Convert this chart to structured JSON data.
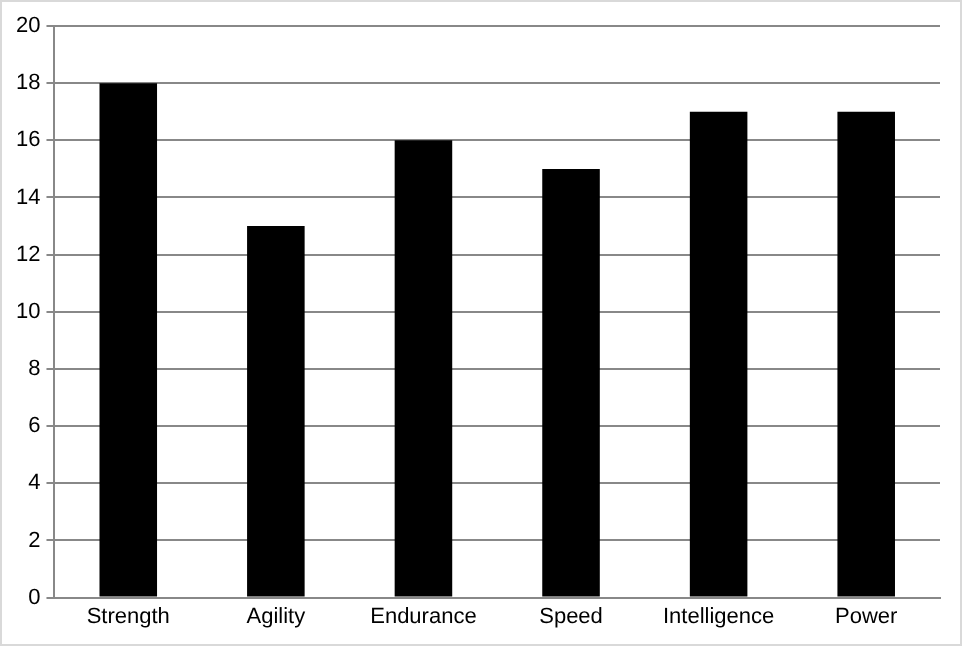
{
  "chart_data": {
    "type": "bar",
    "categories": [
      "Strength",
      "Agility",
      "Endurance",
      "Speed",
      "Intelligence",
      "Power"
    ],
    "values": [
      18,
      13,
      16,
      15,
      17,
      17
    ],
    "color": "#000000",
    "ylim": [
      0,
      20
    ],
    "yticks": [
      0,
      2,
      4,
      6,
      8,
      10,
      12,
      14,
      16,
      18,
      20
    ],
    "grid": "y",
    "legend": false
  }
}
